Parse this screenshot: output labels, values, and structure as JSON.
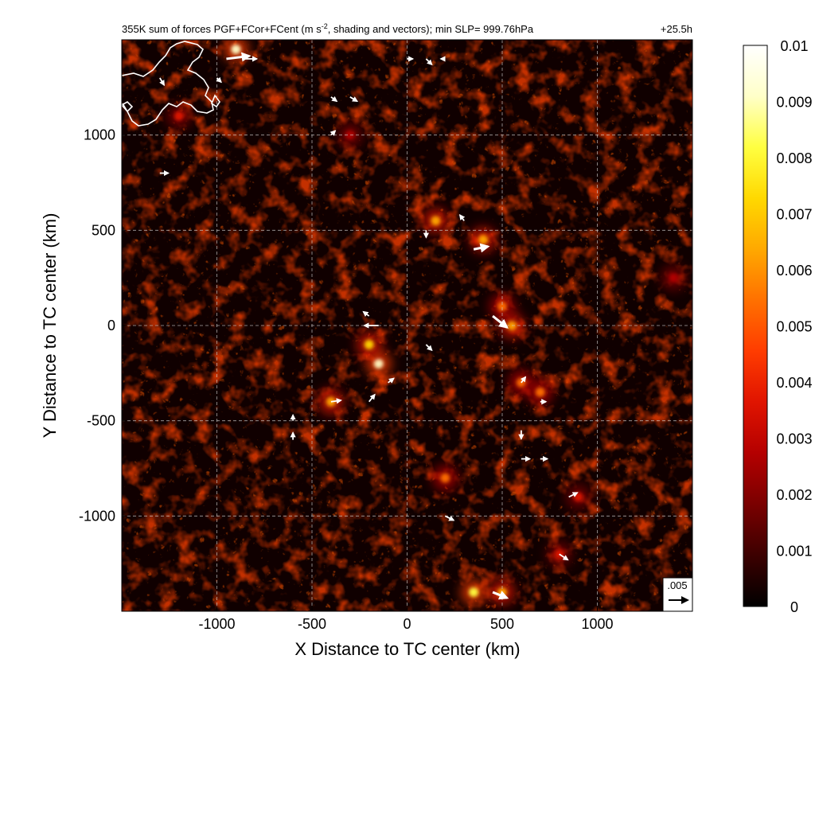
{
  "chart_data": {
    "type": "heatmap",
    "title": "355K sum of forces PGF+FCor+FCent (m s",
    "title_superscript": "-2",
    "title_rest": ", shading and vectors); min SLP= 999.76hPa",
    "time_label": "+25.5h",
    "xlabel": "X Distance to TC center (km)",
    "ylabel": "Y Distance to TC center (km)",
    "xlim": [
      -1500,
      1500
    ],
    "ylim": [
      -1500,
      1500
    ],
    "xticks": [
      -1000,
      -500,
      0,
      500,
      1000
    ],
    "xtick_labels": [
      "-1000",
      "-500",
      "0",
      "500",
      "1000"
    ],
    "yticks": [
      -1000,
      -500,
      0,
      500,
      1000
    ],
    "ytick_labels": [
      "-1000",
      "-500",
      "0",
      "500",
      "1000"
    ],
    "grid": "dashed",
    "colorbar": {
      "min": 0,
      "max": 0.01,
      "ticks": [
        0,
        0.001,
        0.002,
        0.003,
        0.004,
        0.005,
        0.006,
        0.007,
        0.008,
        0.009,
        0.01
      ],
      "tick_labels": [
        "0",
        "0.001",
        "0.002",
        "0.003",
        "0.004",
        "0.005",
        "0.006",
        "0.007",
        "0.008",
        "0.009",
        "0.01"
      ],
      "colors": [
        "#000000",
        "#3c0000",
        "#7a0000",
        "#b40000",
        "#e01400",
        "#ff3c00",
        "#ff7000",
        "#ffa800",
        "#ffd800",
        "#ffff40",
        "#ffffc8",
        "#ffffff"
      ]
    },
    "reference_vector": {
      "value": ".005"
    },
    "hotspots": [
      {
        "x": -150,
        "y": -200,
        "value": 0.009
      },
      {
        "x": -200,
        "y": -100,
        "value": 0.007
      },
      {
        "x": -400,
        "y": -400,
        "value": 0.006
      },
      {
        "x": 550,
        "y": 0,
        "value": 0.006
      },
      {
        "x": 500,
        "y": 100,
        "value": 0.005
      },
      {
        "x": 600,
        "y": -300,
        "value": 0.005
      },
      {
        "x": 700,
        "y": -350,
        "value": 0.005
      },
      {
        "x": 150,
        "y": 550,
        "value": 0.006
      },
      {
        "x": 400,
        "y": 450,
        "value": 0.006
      },
      {
        "x": 200,
        "y": -800,
        "value": 0.005
      },
      {
        "x": 350,
        "y": -1400,
        "value": 0.008
      },
      {
        "x": 500,
        "y": -1400,
        "value": 0.006
      },
      {
        "x": -900,
        "y": 1450,
        "value": 0.009
      },
      {
        "x": 900,
        "y": -900,
        "value": 0.004
      },
      {
        "x": 800,
        "y": -1200,
        "value": 0.004
      },
      {
        "x": -1200,
        "y": 1100,
        "value": 0.004
      },
      {
        "x": -300,
        "y": 1000,
        "value": 0.003
      },
      {
        "x": 1400,
        "y": 250,
        "value": 0.003
      }
    ],
    "vectors": [
      {
        "x": -950,
        "y": 1400,
        "u": 1.6,
        "v": 0.2
      },
      {
        "x": -850,
        "y": 1400,
        "u": 0.8,
        "v": 0.0
      },
      {
        "x": -1300,
        "y": 1300,
        "u": 0.3,
        "v": -0.5
      },
      {
        "x": -400,
        "y": 1200,
        "u": 0.4,
        "v": -0.3
      },
      {
        "x": -300,
        "y": 1200,
        "u": 0.5,
        "v": -0.3
      },
      {
        "x": 100,
        "y": 1400,
        "u": 0.4,
        "v": -0.4
      },
      {
        "x": -1300,
        "y": 800,
        "u": 0.6,
        "v": 0.0
      },
      {
        "x": -400,
        "y": 1000,
        "u": 0.3,
        "v": 0.3
      },
      {
        "x": 100,
        "y": 500,
        "u": 0.0,
        "v": -0.5
      },
      {
        "x": 350,
        "y": 400,
        "u": 1.0,
        "v": 0.2
      },
      {
        "x": 450,
        "y": 50,
        "u": 1.0,
        "v": -0.8
      },
      {
        "x": -150,
        "y": 0,
        "u": -1.0,
        "v": 0.0
      },
      {
        "x": -200,
        "y": 50,
        "u": -0.4,
        "v": 0.3
      },
      {
        "x": -400,
        "y": -400,
        "u": 0.7,
        "v": 0.1
      },
      {
        "x": -600,
        "y": -600,
        "u": 0.0,
        "v": 0.5
      },
      {
        "x": -600,
        "y": -500,
        "u": 0.0,
        "v": 0.4
      },
      {
        "x": 200,
        "y": -1000,
        "u": 0.6,
        "v": -0.3
      },
      {
        "x": 600,
        "y": -700,
        "u": 0.6,
        "v": 0.0
      },
      {
        "x": 700,
        "y": -700,
        "u": 0.5,
        "v": 0.0
      },
      {
        "x": 850,
        "y": -900,
        "u": 0.6,
        "v": 0.3
      },
      {
        "x": 800,
        "y": -1200,
        "u": 0.6,
        "v": -0.4
      },
      {
        "x": 450,
        "y": -1400,
        "u": 1.0,
        "v": -0.4
      },
      {
        "x": 600,
        "y": -550,
        "u": 0.0,
        "v": -0.6
      },
      {
        "x": 600,
        "y": -300,
        "u": 0.3,
        "v": 0.4
      },
      {
        "x": 700,
        "y": -400,
        "u": 0.4,
        "v": 0.0
      },
      {
        "x": 0,
        "y": 1400,
        "u": 0.4,
        "v": 0.0
      },
      {
        "x": 200,
        "y": 1400,
        "u": -0.3,
        "v": 0.0
      },
      {
        "x": -1000,
        "y": 1300,
        "u": 0.3,
        "v": -0.3
      },
      {
        "x": 100,
        "y": -100,
        "u": 0.4,
        "v": -0.4
      },
      {
        "x": -100,
        "y": -300,
        "u": 0.4,
        "v": 0.3
      },
      {
        "x": -200,
        "y": -400,
        "u": 0.4,
        "v": 0.5
      },
      {
        "x": 300,
        "y": 550,
        "u": -0.3,
        "v": 0.4
      }
    ]
  }
}
